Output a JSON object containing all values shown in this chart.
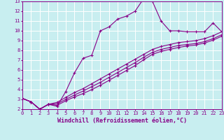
{
  "xlabel": "Windchill (Refroidissement éolien,°C)",
  "background_color": "#c8eef0",
  "grid_color": "#ffffff",
  "line_color": "#880088",
  "xlim": [
    0,
    23
  ],
  "ylim": [
    2,
    13
  ],
  "xticks": [
    0,
    1,
    2,
    3,
    4,
    5,
    6,
    7,
    8,
    9,
    10,
    11,
    12,
    13,
    14,
    15,
    16,
    17,
    18,
    19,
    20,
    21,
    22,
    23
  ],
  "yticks": [
    2,
    3,
    4,
    5,
    6,
    7,
    8,
    9,
    10,
    11,
    12,
    13
  ],
  "line1_x": [
    0,
    1,
    2,
    3,
    4,
    5,
    6,
    7,
    8,
    9,
    10,
    11,
    12,
    13,
    14,
    15,
    16,
    17,
    18,
    19,
    20,
    21,
    22,
    23
  ],
  "line1_y": [
    3.1,
    2.75,
    2.0,
    2.5,
    2.3,
    3.8,
    5.7,
    7.2,
    7.5,
    10.0,
    10.4,
    11.2,
    11.5,
    12.0,
    13.3,
    13.0,
    11.0,
    10.0,
    10.0,
    9.9,
    9.9,
    9.9,
    10.8,
    9.9
  ],
  "line2_x": [
    0,
    1,
    2,
    3,
    4,
    5,
    6,
    7,
    8,
    9,
    10,
    11,
    12,
    13,
    14,
    15,
    16,
    17,
    18,
    19,
    20,
    21,
    22,
    23
  ],
  "line2_y": [
    3.1,
    2.75,
    2.0,
    2.5,
    2.7,
    3.2,
    3.7,
    4.1,
    4.6,
    5.1,
    5.6,
    6.1,
    6.6,
    7.1,
    7.6,
    8.1,
    8.4,
    8.6,
    8.8,
    8.9,
    9.0,
    9.2,
    9.5,
    9.9
  ],
  "line3_x": [
    0,
    1,
    2,
    3,
    4,
    5,
    6,
    7,
    8,
    9,
    10,
    11,
    12,
    13,
    14,
    15,
    16,
    17,
    18,
    19,
    20,
    21,
    22,
    23
  ],
  "line3_y": [
    3.1,
    2.75,
    2.0,
    2.5,
    2.55,
    3.0,
    3.45,
    3.85,
    4.3,
    4.75,
    5.25,
    5.75,
    6.25,
    6.75,
    7.3,
    7.8,
    8.1,
    8.3,
    8.5,
    8.6,
    8.7,
    8.9,
    9.2,
    9.6
  ],
  "line4_x": [
    0,
    1,
    2,
    3,
    4,
    5,
    6,
    7,
    8,
    9,
    10,
    11,
    12,
    13,
    14,
    15,
    16,
    17,
    18,
    19,
    20,
    21,
    22,
    23
  ],
  "line4_y": [
    3.1,
    2.75,
    2.0,
    2.5,
    2.4,
    2.85,
    3.25,
    3.6,
    4.0,
    4.45,
    4.95,
    5.45,
    5.95,
    6.45,
    7.05,
    7.6,
    7.9,
    8.1,
    8.3,
    8.45,
    8.55,
    8.75,
    9.05,
    9.45
  ],
  "marker": "+",
  "markersize": 3,
  "markeredgewidth": 0.8,
  "linewidth": 0.8,
  "tick_fontsize": 5.0,
  "xlabel_fontsize": 6.0
}
